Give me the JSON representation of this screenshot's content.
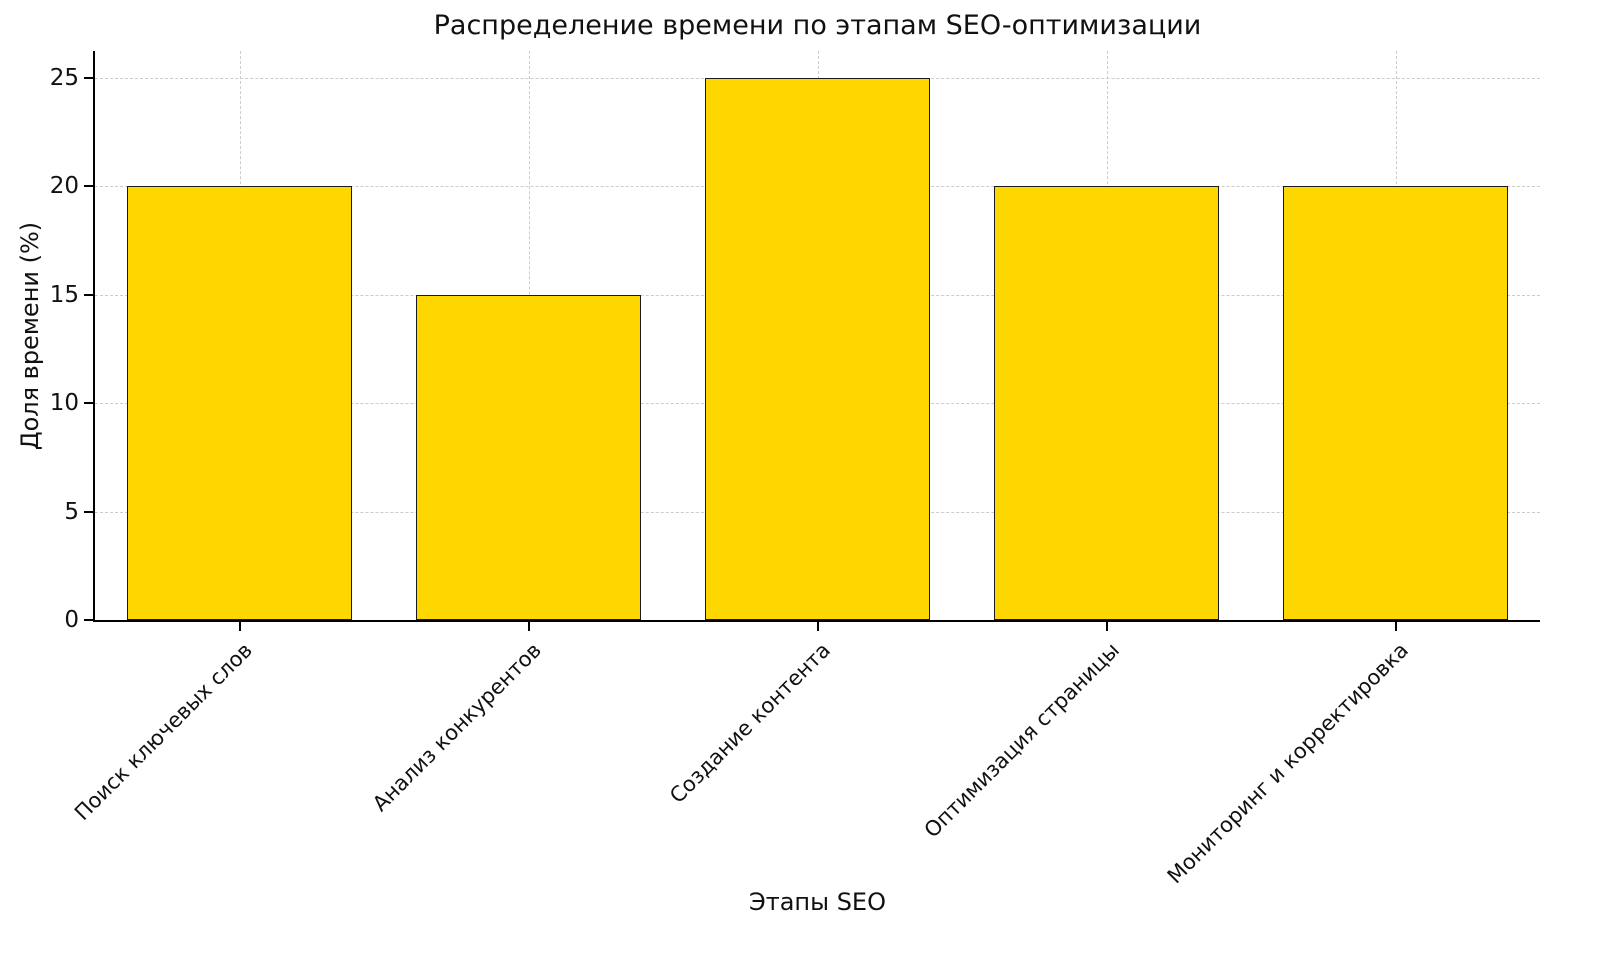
{
  "chart_data": {
    "type": "bar",
    "title": "Распределение времени по этапам SEO-оптимизации",
    "xlabel": "Этапы SEO",
    "ylabel": "Доля времени (%)",
    "categories": [
      "Поиск ключевых слов",
      "Анализ конкурентов",
      "Создание контента",
      "Оптимизация страницы",
      "Мониторинг и корректировка"
    ],
    "values": [
      20,
      15,
      25,
      20,
      20
    ],
    "yticks": [
      0,
      5,
      10,
      15,
      20,
      25
    ],
    "ylim": [
      0,
      26.25
    ],
    "bar_color": "#FFD700",
    "bar_edge_color": "#1a1a1a",
    "grid": true,
    "grid_style": "dashed",
    "legend": "none",
    "background_color": "#ffffff"
  }
}
